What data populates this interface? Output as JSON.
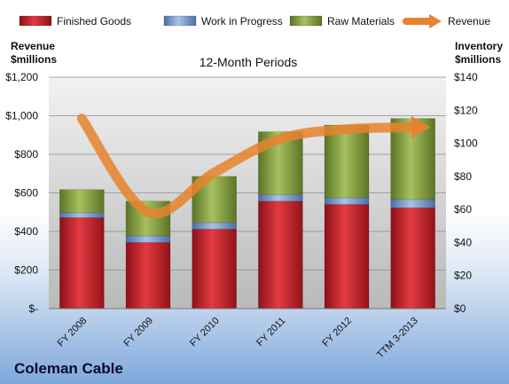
{
  "company": "Coleman Cable",
  "chart_data": {
    "type": "bar",
    "title": "12-Month Periods",
    "categories": [
      "FY 2008",
      "FY 2009",
      "FY 2010",
      "FY 2011",
      "FY 2012",
      "TTM 3-2013"
    ],
    "series": [
      {
        "name": "Finished Goods",
        "axis": "right",
        "stack": "inventory",
        "values": [
          55,
          40,
          48,
          65,
          63,
          61
        ],
        "color": "#c8202a"
      },
      {
        "name": "Work in Progress",
        "axis": "right",
        "stack": "inventory",
        "values": [
          3,
          4,
          4,
          4,
          4,
          5
        ],
        "color": "#6f93c7"
      },
      {
        "name": "Raw Materials",
        "axis": "right",
        "stack": "inventory",
        "values": [
          14,
          21,
          28,
          38,
          44,
          49
        ],
        "color": "#7f9c36"
      },
      {
        "name": "Revenue",
        "axis": "left",
        "type": "line",
        "values": [
          985,
          500,
          705,
          880,
          930,
          940
        ],
        "color": "#e8822d"
      }
    ],
    "y_left": {
      "label_line1": "Revenue",
      "label_line2": "$millions",
      "range": [
        0,
        1200
      ],
      "ticks": [
        0,
        200,
        400,
        600,
        800,
        1000,
        1200
      ],
      "tick_labels": [
        "$-",
        "$200",
        "$400",
        "$600",
        "$800",
        "$1,000",
        "$1,200"
      ]
    },
    "y_right": {
      "label_line1": "Inventory",
      "label_line2": "$millions",
      "range": [
        0,
        140
      ],
      "ticks": [
        0,
        20,
        40,
        60,
        80,
        100,
        120,
        140
      ],
      "tick_labels": [
        "$0",
        "$20",
        "$40",
        "$60",
        "$80",
        "$100",
        "$120",
        "$140"
      ]
    },
    "legend_position": "top",
    "grid": true
  }
}
